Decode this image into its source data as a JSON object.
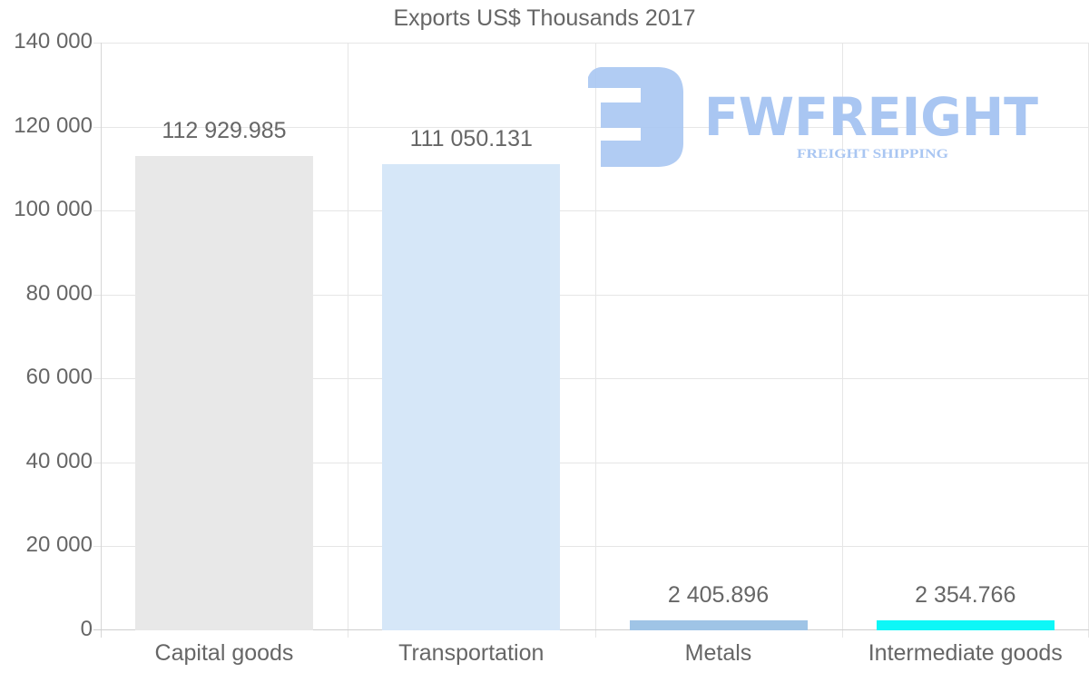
{
  "chart_data": {
    "type": "bar",
    "title": "Exports US$ Thousands 2017",
    "xlabel": "",
    "ylabel": "",
    "categories": [
      "Capital goods",
      "Transportation",
      "Metals",
      "Intermediate goods"
    ],
    "values": [
      112929.985,
      111050.131,
      2405.896,
      2354.766
    ],
    "value_labels": [
      "112 929.985",
      "111 050.131",
      "2 405.896",
      "2 354.766"
    ],
    "bar_colors": [
      "#e8e8e8",
      "#d6e7f8",
      "#9fc4e6",
      "#0ef7f7"
    ],
    "ylim": [
      0,
      140000
    ],
    "yticks": [
      0,
      20000,
      40000,
      60000,
      80000,
      100000,
      120000,
      140000
    ],
    "ytick_labels": [
      "0",
      "20 000",
      "40 000",
      "60 000",
      "80 000",
      "100 000",
      "120 000",
      "140 000"
    ],
    "grid": true,
    "legend": null
  },
  "watermark": {
    "brand": "FWFREIGHT",
    "tagline": "FREIGHT SHIPPING",
    "color": "#a9c6f2"
  }
}
